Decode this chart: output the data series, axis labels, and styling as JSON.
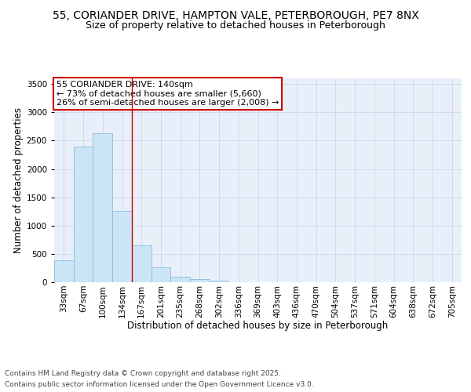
{
  "title_line1": "55, CORIANDER DRIVE, HAMPTON VALE, PETERBOROUGH, PE7 8NX",
  "title_line2": "Size of property relative to detached houses in Peterborough",
  "xlabel": "Distribution of detached houses by size in Peterborough",
  "ylabel": "Number of detached properties",
  "bin_labels": [
    "33sqm",
    "67sqm",
    "100sqm",
    "134sqm",
    "167sqm",
    "201sqm",
    "235sqm",
    "268sqm",
    "302sqm",
    "336sqm",
    "369sqm",
    "403sqm",
    "436sqm",
    "470sqm",
    "504sqm",
    "537sqm",
    "571sqm",
    "604sqm",
    "638sqm",
    "672sqm",
    "705sqm"
  ],
  "bar_values": [
    390,
    2400,
    2630,
    1260,
    650,
    270,
    100,
    55,
    30,
    5,
    0,
    0,
    0,
    0,
    0,
    0,
    0,
    0,
    0,
    0,
    0
  ],
  "bar_color": "#cce5f5",
  "bar_edgecolor": "#88bbdd",
  "vline_x": 3.5,
  "vline_color": "#cc0000",
  "annotation_text": "55 CORIANDER DRIVE: 140sqm\n← 73% of detached houses are smaller (5,660)\n26% of semi-detached houses are larger (2,008) →",
  "annotation_box_color": "#cc0000",
  "ylim": [
    0,
    3600
  ],
  "yticks": [
    0,
    500,
    1000,
    1500,
    2000,
    2500,
    3000,
    3500
  ],
  "grid_color": "#c8d8ee",
  "bg_color": "#e8eff8",
  "footer_line1": "Contains HM Land Registry data © Crown copyright and database right 2025.",
  "footer_line2": "Contains public sector information licensed under the Open Government Licence v3.0.",
  "title_fontsize": 10,
  "subtitle_fontsize": 9,
  "axis_label_fontsize": 8.5,
  "tick_fontsize": 7.5,
  "annotation_fontsize": 8,
  "footer_fontsize": 6.5
}
